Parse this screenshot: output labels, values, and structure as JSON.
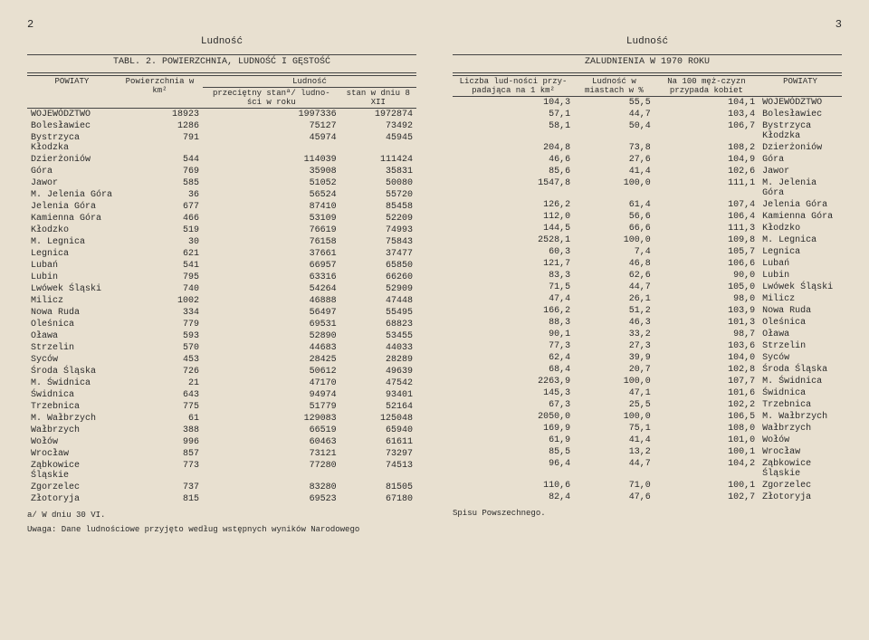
{
  "left": {
    "pageNum": "2",
    "title": "Ludność",
    "tabl": "TABL. 2. POWIERZCHNIA, LUDNOŚĆ I GĘSTOŚĆ",
    "headers": {
      "c1": "POWIATY",
      "c2": "Powierzchnia w km²",
      "c3a": "Ludność",
      "c3b": "przeciętny stanª/ ludno-ści w roku",
      "c3c": "stan w dniu 8 XII"
    },
    "rows": [
      [
        "WOJEWÓDZTWO",
        "18923",
        "1997336",
        "1972874"
      ],
      [
        "Bolesławiec",
        "1286",
        "75127",
        "73492"
      ],
      [
        "Bystrzyca Kłodzka",
        "791",
        "45974",
        "45945"
      ],
      [
        "Dzierżoniów",
        "544",
        "114039",
        "111424"
      ],
      [
        "Góra",
        "769",
        "35908",
        "35831"
      ],
      [
        "Jawor",
        "585",
        "51052",
        "50080"
      ],
      [
        "M. Jelenia Góra",
        "36",
        "56524",
        "55720"
      ],
      [
        "Jelenia Góra",
        "677",
        "87410",
        "85458"
      ],
      [
        "Kamienna Góra",
        "466",
        "53109",
        "52209"
      ],
      [
        "Kłodzko",
        "519",
        "76619",
        "74993"
      ],
      [
        "M. Legnica",
        "30",
        "76158",
        "75843"
      ],
      [
        "Legnica",
        "621",
        "37661",
        "37477"
      ],
      [
        "Lubań",
        "541",
        "66957",
        "65850"
      ],
      [
        "Lubin",
        "795",
        "63316",
        "66260"
      ],
      [
        "Lwówek Śląski",
        "740",
        "54264",
        "52909"
      ],
      [
        "Milicz",
        "1002",
        "46888",
        "47448"
      ],
      [
        "Nowa Ruda",
        "334",
        "56497",
        "55495"
      ],
      [
        "Oleśnica",
        "779",
        "69531",
        "68823"
      ],
      [
        "Oława",
        "593",
        "52890",
        "53455"
      ],
      [
        "Strzelin",
        "570",
        "44683",
        "44033"
      ],
      [
        "Syców",
        "453",
        "28425",
        "28289"
      ],
      [
        "Środa Śląska",
        "726",
        "50612",
        "49639"
      ],
      [
        "M. Świdnica",
        "21",
        "47170",
        "47542"
      ],
      [
        "Świdnica",
        "643",
        "94974",
        "93401"
      ],
      [
        "Trzebnica",
        "775",
        "51779",
        "52164"
      ],
      [
        "M. Wałbrzych",
        "61",
        "129083",
        "125048"
      ],
      [
        "Wałbrzych",
        "388",
        "66519",
        "65940"
      ],
      [
        "Wołów",
        "996",
        "60463",
        "61611"
      ],
      [
        "Wrocław",
        "857",
        "73121",
        "73297"
      ],
      [
        "Ząbkowice Śląskie",
        "773",
        "77280",
        "74513"
      ],
      [
        "Zgorzelec",
        "737",
        "83280",
        "81505"
      ],
      [
        "Złotoryja",
        "815",
        "69523",
        "67180"
      ]
    ],
    "footnote": "a/ W dniu 30 VI.",
    "note": "Uwaga: Dane ludnościowe przyjęto według wstępnych wyników Narodowego"
  },
  "right": {
    "pageNum": "3",
    "title": "Ludność",
    "tabl": "ZALUDNIENIA W 1970 ROKU",
    "headers": {
      "c1": "Liczba lud-ności przy-padająca na 1 km²",
      "c2": "Ludność w miastach w %",
      "c3": "Na 100 męż-czyzn przypada kobiet",
      "c4": "POWIATY"
    },
    "rows": [
      [
        "104,3",
        "55,5",
        "104,1",
        "WOJEWÓDZTWO"
      ],
      [
        "57,1",
        "44,7",
        "103,4",
        "Bolesławiec"
      ],
      [
        "58,1",
        "50,4",
        "106,7",
        "Bystrzyca Kłodzka"
      ],
      [
        "204,8",
        "73,8",
        "108,2",
        "Dzierżoniów"
      ],
      [
        "46,6",
        "27,6",
        "104,9",
        "Góra"
      ],
      [
        "85,6",
        "41,4",
        "102,6",
        "Jawor"
      ],
      [
        "1547,8",
        "100,0",
        "111,1",
        "M. Jelenia Góra"
      ],
      [
        "126,2",
        "61,4",
        "107,4",
        "Jelenia Góra"
      ],
      [
        "112,0",
        "56,6",
        "106,4",
        "Kamienna Góra"
      ],
      [
        "144,5",
        "66,6",
        "111,3",
        "Kłodzko"
      ],
      [
        "2528,1",
        "100,0",
        "109,8",
        "M. Legnica"
      ],
      [
        "60,3",
        "7,4",
        "105,7",
        "Legnica"
      ],
      [
        "121,7",
        "46,8",
        "106,6",
        "Lubań"
      ],
      [
        "83,3",
        "62,6",
        "90,0",
        "Lubin"
      ],
      [
        "71,5",
        "44,7",
        "105,0",
        "Lwówek Śląski"
      ],
      [
        "47,4",
        "26,1",
        "98,0",
        "Milicz"
      ],
      [
        "166,2",
        "51,2",
        "103,9",
        "Nowa Ruda"
      ],
      [
        "88,3",
        "46,3",
        "101,3",
        "Oleśnica"
      ],
      [
        "90,1",
        "33,2",
        "98,7",
        "Oława"
      ],
      [
        "77,3",
        "27,3",
        "103,6",
        "Strzelin"
      ],
      [
        "62,4",
        "39,9",
        "104,0",
        "Syców"
      ],
      [
        "68,4",
        "20,7",
        "102,8",
        "Środa Śląska"
      ],
      [
        "2263,9",
        "100,0",
        "107,7",
        "M. Świdnica"
      ],
      [
        "145,3",
        "47,1",
        "101,6",
        "Świdnica"
      ],
      [
        "67,3",
        "25,5",
        "102,2",
        "Trzebnica"
      ],
      [
        "2050,0",
        "100,0",
        "106,5",
        "M. Wałbrzych"
      ],
      [
        "169,9",
        "75,1",
        "108,0",
        "Wałbrzych"
      ],
      [
        "61,9",
        "41,4",
        "101,0",
        "Wołów"
      ],
      [
        "85,5",
        "13,2",
        "100,1",
        "Wrocław"
      ],
      [
        "96,4",
        "44,7",
        "104,2",
        "Ząbkowice Śląskie"
      ],
      [
        "110,6",
        "71,0",
        "100,1",
        "Zgorzelec"
      ],
      [
        "82,4",
        "47,6",
        "102,7",
        "Złotoryja"
      ]
    ],
    "note": "Spisu Powszechnego."
  }
}
